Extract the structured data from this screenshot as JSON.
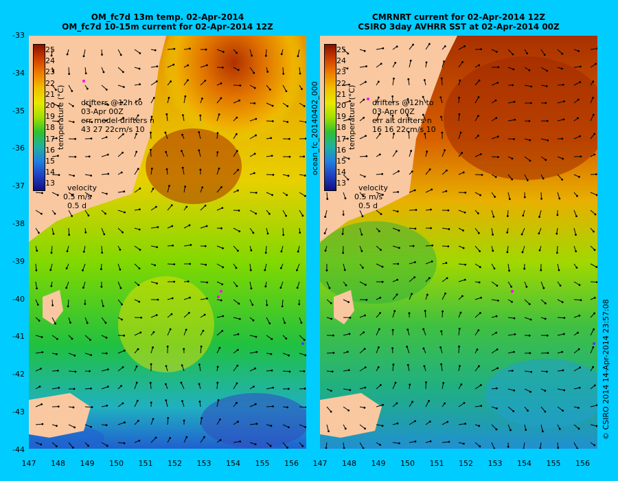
{
  "left_panel": {
    "title_line1": "OM_fc7d 13m temp. 02-Apr-2014",
    "title_line2": "OM_fc7d 10-15m current for 02-Apr-2014 12Z",
    "colorbar_label": "temperature (°C)",
    "drifters_line1": "drifters @12h to",
    "drifters_line2": "03-Apr 00Z",
    "drifters_line3": "err model drifters n",
    "drifters_line4": "43 27 22cm/s 10",
    "velocity_label": "velocity",
    "velocity_scale": "0.5 m/s",
    "velocity_time": "0.5 d"
  },
  "right_panel": {
    "title_line1": "CMRNRT current for 02-Apr-2014 12Z",
    "title_line2": "CSIRO 3day AVHRR SST at 02-Apr-2014 00Z",
    "colorbar_label": "temperature (°C)",
    "drifters_line1": "drifters @12h to",
    "drifters_line2": "03-Apr 00Z",
    "drifters_line3": "err alt drifters n",
    "drifters_line4": "16 16 22cm/s 10",
    "velocity_label": "velocity",
    "velocity_scale": "0.5 m/s",
    "velocity_time": "0.5 d"
  },
  "file_label": "ocean_fc_20140402_000",
  "credit": "© CSIRO 2014   14-Apr-2014 23:57:08",
  "colorbar_ticks": [
    "25",
    "24",
    "23",
    "22",
    "21",
    "20",
    "19",
    "18",
    "17",
    "16",
    "15",
    "14",
    "13"
  ],
  "lat_ticks": [
    "-33",
    "-34",
    "-35",
    "-36",
    "-37",
    "-38",
    "-39",
    "-40",
    "-41",
    "-42",
    "-43",
    "-44"
  ],
  "lon_ticks": [
    "147",
    "148",
    "149",
    "150",
    "151",
    "152",
    "153",
    "154",
    "155",
    "156"
  ],
  "colors": {
    "background": "#00ccff",
    "land": "#f9c8a0",
    "warm": "#b03000",
    "cool": "#2060d0"
  }
}
